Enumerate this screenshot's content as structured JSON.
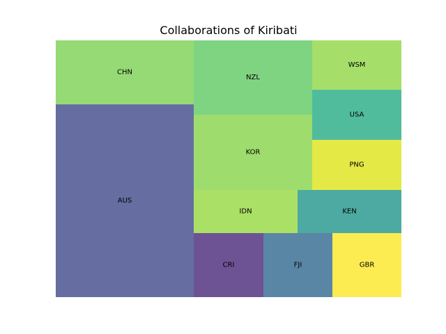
{
  "chart_data": {
    "type": "treemap",
    "title": "Collaborations of Kiribati",
    "items": [
      {
        "label": "AUS",
        "value": 54.8,
        "color": "#3e4989"
      },
      {
        "label": "CHN",
        "value": 18.0,
        "color": "#7ad151"
      },
      {
        "label": "NZL",
        "value": 17.8,
        "color": "#5ec962"
      },
      {
        "label": "KOR",
        "value": 18.3,
        "color": "#86d549"
      },
      {
        "label": "IDN",
        "value": 9.3,
        "color": "#95d840"
      },
      {
        "label": "CRI",
        "value": 9.2,
        "color": "#482878"
      },
      {
        "label": "FJI",
        "value": 9.2,
        "color": "#31688e"
      },
      {
        "label": "GBR",
        "value": 9.2,
        "color": "#fde725"
      },
      {
        "label": "WSM",
        "value": 9.0,
        "color": "#8fd744"
      },
      {
        "label": "USA",
        "value": 9.2,
        "color": "#25ab82"
      },
      {
        "label": "PNG",
        "value": 9.2,
        "color": "#dde318"
      },
      {
        "label": "KEN",
        "value": 9.1,
        "color": "#1f958b"
      }
    ]
  }
}
